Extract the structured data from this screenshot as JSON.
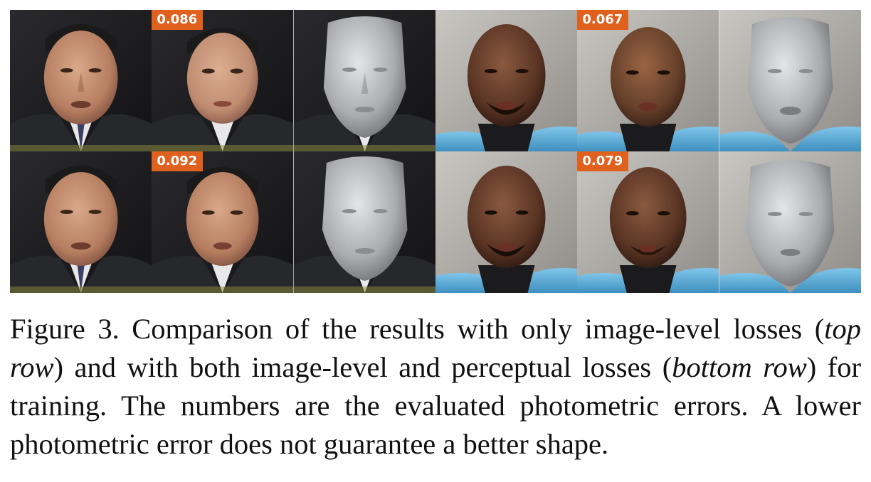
{
  "figure": {
    "badges": {
      "top_first": "0.086",
      "top_second": "0.067",
      "bottom_first": "0.092",
      "bottom_second": "0.079"
    },
    "colors": {
      "badge": "#e0601e",
      "studio_blue": "#5fb2dc",
      "suit": "#26282c",
      "render_gray": "#a9abae"
    },
    "icons": [
      "face-photo-icon",
      "face-render-icon"
    ]
  },
  "caption": {
    "label": "Figure 3.",
    "text_1": " Comparison of the results with only image-level losses (",
    "em_1": "top row",
    "text_2": ") and with both image-level and perceptual losses (",
    "em_2": "bottom row",
    "text_3": ") for training. The numbers are the evaluated photometric errors. A lower photometric error does not guarantee a better shape."
  }
}
